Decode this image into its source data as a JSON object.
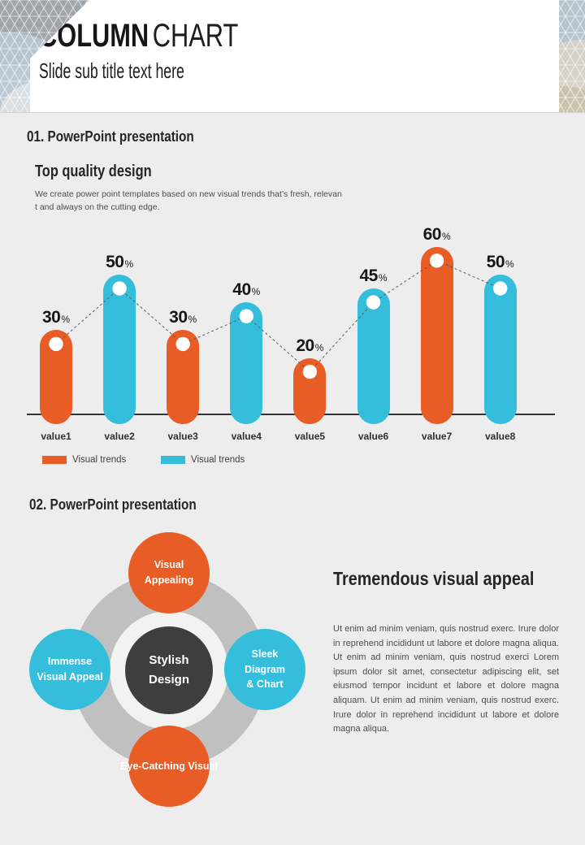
{
  "header": {
    "title_bold": "COLUMN",
    "title_light": "CHART",
    "subtitle": "Slide sub title text here"
  },
  "section1": {
    "heading": "01. PowerPoint presentation",
    "subheading": "Top quality design",
    "body": "We create power point templates based on new visual trends that’s fresh, relevan\nt and always on the cutting edge."
  },
  "chart_data": {
    "type": "bar",
    "title": "",
    "categories": [
      "value1",
      "value2",
      "value3",
      "value4",
      "value5",
      "value6",
      "value7",
      "value8"
    ],
    "values": [
      30,
      50,
      30,
      40,
      20,
      45,
      60,
      50
    ],
    "unit": "%",
    "bar_colors": [
      "#E85C26",
      "#35BEDC"
    ],
    "legend": [
      {
        "label": "Visual trends",
        "color": "#E85C26"
      },
      {
        "label": "Visual trends",
        "color": "#35BEDC"
      }
    ],
    "legend_position": "bottom-left",
    "connector_line": true,
    "grid": false,
    "ylim": [
      0,
      70
    ]
  },
  "section2": {
    "heading": "02. PowerPoint presentation",
    "diagram": {
      "center_label": "Stylish\nDesign",
      "satellites": [
        {
          "label": "Visual\nAppealing",
          "position": "top",
          "color": "#E85C26"
        },
        {
          "label": "Immense\nVisual Appeal",
          "position": "left",
          "color": "#35BEDC"
        },
        {
          "label": "Sleek\nDiagram\n& Chart",
          "position": "right",
          "color": "#35BEDC"
        },
        {
          "label": "Eye-Catching Visual",
          "position": "bottom",
          "color": "#E85C26"
        }
      ]
    },
    "right": {
      "heading": "Tremendous visual appeal",
      "body": "Ut enim ad minim veniam, quis nostrud exerc. Irure dolor in reprehend incididunt ut labore et dolore magna aliqua. Ut enim ad minim veniam, quis nostrud exerci  Lorem ipsum dolor sit amet, consectetur adipiscing elit, set eiusmod tempor incidunt et labore et dolore magna aliquam. Ut enim ad minim veniam, quis nostrud exerc. Irure dolor in reprehend incididunt ut labore et dolore magna aliqua."
    }
  },
  "colors": {
    "orange": "#E85C26",
    "cyan": "#35BEDC",
    "dark_circle": "#3E3E3E",
    "gray_circle": "#C0C0C0",
    "ring": "#F2F2F1",
    "page_bg": "#EDEDED",
    "heading": "#262626",
    "body_text": "#4D4D4D",
    "axis": "#333333",
    "connector": "#5A5A5A"
  }
}
